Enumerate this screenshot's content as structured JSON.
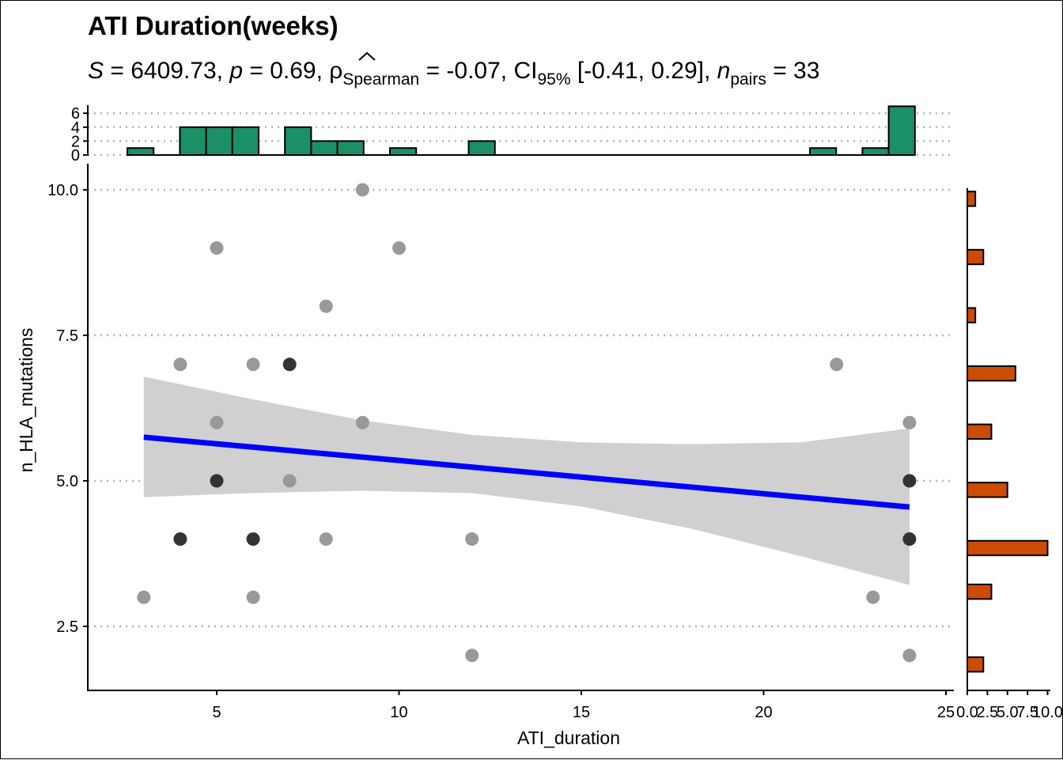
{
  "chart_data": {
    "type": "scatter",
    "title": "ATI Duration(weeks)",
    "subtitle": {
      "s": "6409.73",
      "p": "0.69",
      "rho": "-0.07",
      "ci_level": "95%",
      "ci": "[-0.41, 0.29]",
      "n_pairs": "33",
      "rho_subscript": "Spearman",
      "n_subscript": "pairs"
    },
    "xlabel": "ATI_duration",
    "ylabel": "n_HLA_mutations",
    "xlim": [
      1.5,
      25
    ],
    "ylim": [
      1.5,
      10.5
    ],
    "x_ticks": [
      "5",
      "10",
      "15",
      "20",
      "25"
    ],
    "y_ticks": [
      "2.5",
      "5.0",
      "7.5",
      "10.0"
    ],
    "grid": "horizontal dotted",
    "points": [
      {
        "x": 3,
        "y": 3
      },
      {
        "x": 4,
        "y": 7
      },
      {
        "x": 4,
        "y": 4,
        "dark": true
      },
      {
        "x": 5,
        "y": 9
      },
      {
        "x": 5,
        "y": 6
      },
      {
        "x": 5,
        "y": 5,
        "dark": true
      },
      {
        "x": 6,
        "y": 7
      },
      {
        "x": 6,
        "y": 4,
        "dark": true
      },
      {
        "x": 6,
        "y": 3
      },
      {
        "x": 7,
        "y": 7,
        "dark": true
      },
      {
        "x": 7,
        "y": 5
      },
      {
        "x": 8,
        "y": 8
      },
      {
        "x": 8,
        "y": 4
      },
      {
        "x": 9,
        "y": 10
      },
      {
        "x": 9,
        "y": 6
      },
      {
        "x": 10,
        "y": 9
      },
      {
        "x": 12,
        "y": 4
      },
      {
        "x": 12,
        "y": 2
      },
      {
        "x": 22,
        "y": 7
      },
      {
        "x": 23,
        "y": 3
      },
      {
        "x": 24,
        "y": 6
      },
      {
        "x": 24,
        "y": 5,
        "dark": true
      },
      {
        "x": 24,
        "y": 4,
        "dark": true
      },
      {
        "x": 24,
        "y": 2
      }
    ],
    "fit_line": {
      "x": [
        3,
        24
      ],
      "y": [
        5.75,
        4.55
      ]
    },
    "confidence_band": {
      "x": [
        3,
        6,
        9,
        12,
        15,
        18,
        21,
        24
      ],
      "lower": [
        4.72,
        4.79,
        4.83,
        4.79,
        4.56,
        4.18,
        3.71,
        3.21
      ],
      "upper": [
        6.79,
        6.4,
        6.04,
        5.79,
        5.66,
        5.63,
        5.66,
        5.9
      ]
    },
    "top_histogram": {
      "y_ticks": [
        "0",
        "2",
        "4",
        "6"
      ],
      "ylim": [
        0,
        7
      ],
      "bins": [
        {
          "x0": 2.55,
          "x1": 3.27,
          "count": 1
        },
        {
          "x0": 3.99,
          "x1": 4.71,
          "count": 4
        },
        {
          "x0": 4.71,
          "x1": 5.43,
          "count": 4
        },
        {
          "x0": 5.43,
          "x1": 6.15,
          "count": 4
        },
        {
          "x0": 6.87,
          "x1": 7.59,
          "count": 4
        },
        {
          "x0": 7.59,
          "x1": 8.31,
          "count": 2
        },
        {
          "x0": 8.31,
          "x1": 9.03,
          "count": 2
        },
        {
          "x0": 9.75,
          "x1": 10.47,
          "count": 1
        },
        {
          "x0": 11.91,
          "x1": 12.63,
          "count": 2
        },
        {
          "x0": 21.27,
          "x1": 21.99,
          "count": 1
        },
        {
          "x0": 22.71,
          "x1": 23.43,
          "count": 1
        },
        {
          "x0": 23.43,
          "x1": 24.15,
          "count": 7
        }
      ]
    },
    "right_histogram": {
      "x_ticks": [
        "0.0",
        "2.5",
        "5.0",
        "7.5",
        "10.0"
      ],
      "xlim": [
        0,
        10
      ],
      "bins": [
        {
          "y0": 1.72,
          "y1": 1.97,
          "count": 2
        },
        {
          "y0": 2.97,
          "y1": 3.22,
          "count": 3
        },
        {
          "y0": 3.72,
          "y1": 3.97,
          "count": 10
        },
        {
          "y0": 4.72,
          "y1": 4.97,
          "count": 5
        },
        {
          "y0": 5.72,
          "y1": 5.97,
          "count": 3
        },
        {
          "y0": 6.72,
          "y1": 6.97,
          "count": 6
        },
        {
          "y0": 7.72,
          "y1": 7.97,
          "count": 1
        },
        {
          "y0": 8.72,
          "y1": 8.97,
          "count": 2
        },
        {
          "y0": 9.72,
          "y1": 9.97,
          "count": 1
        }
      ]
    },
    "colors": {
      "point": "#999999",
      "point_dark": "#333333",
      "fit_line": "#0000ff",
      "band": "#d0d0d0",
      "top_hist": "#1b9066",
      "right_hist": "#cc4c02",
      "grid": "#b3b3b3"
    }
  }
}
